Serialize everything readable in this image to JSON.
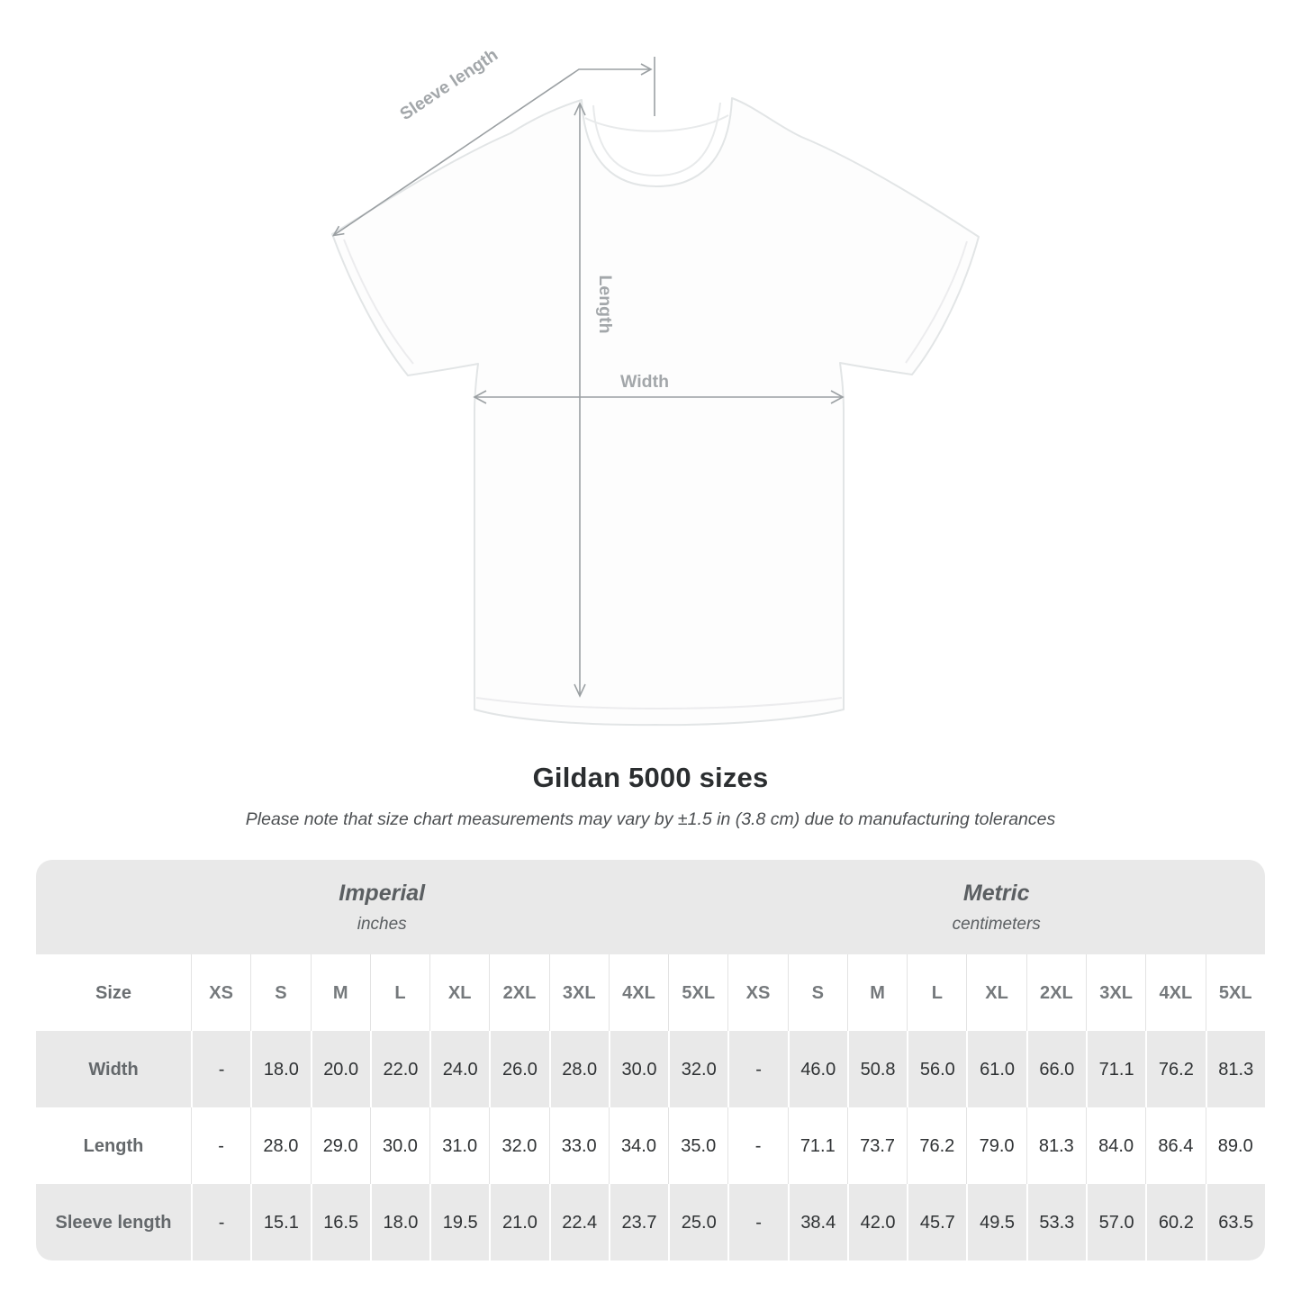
{
  "diagram": {
    "sleeve_label": "Sleeve length",
    "length_label": "Length",
    "width_label": "Width"
  },
  "title": "Gildan 5000 sizes",
  "subtitle": "Please note that size chart measurements may vary by ±1.5 in (3.8 cm) due to manufacturing tolerances",
  "chart_data": {
    "type": "table",
    "corner_header": "Size",
    "sections": [
      {
        "label": "Imperial",
        "unit": "inches"
      },
      {
        "label": "Metric",
        "unit": "centimeters"
      }
    ],
    "size_columns": [
      "XS",
      "S",
      "M",
      "L",
      "XL",
      "2XL",
      "3XL",
      "4XL",
      "5XL"
    ],
    "rows": [
      {
        "label": "Width",
        "imperial": [
          "-",
          "18.0",
          "20.0",
          "22.0",
          "24.0",
          "26.0",
          "28.0",
          "30.0",
          "32.0"
        ],
        "metric": [
          "-",
          "46.0",
          "50.8",
          "56.0",
          "61.0",
          "66.0",
          "71.1",
          "76.2",
          "81.3"
        ]
      },
      {
        "label": "Length",
        "imperial": [
          "-",
          "28.0",
          "29.0",
          "30.0",
          "31.0",
          "32.0",
          "33.0",
          "34.0",
          "35.0"
        ],
        "metric": [
          "-",
          "71.1",
          "73.7",
          "76.2",
          "79.0",
          "81.3",
          "84.0",
          "86.4",
          "89.0"
        ]
      },
      {
        "label": "Sleeve length",
        "imperial": [
          "-",
          "15.1",
          "16.5",
          "18.0",
          "19.5",
          "21.0",
          "22.4",
          "23.7",
          "25.0"
        ],
        "metric": [
          "-",
          "38.4",
          "42.0",
          "45.7",
          "49.5",
          "53.3",
          "57.0",
          "60.2",
          "63.5"
        ]
      }
    ]
  },
  "colors": {
    "band_gray": "#e9e9e9",
    "row_white": "#ffffff",
    "value_text": "#2f3234",
    "header_text": "#64686b",
    "title_text": "#2b2e30",
    "subtitle_text": "#4c4f52",
    "arrow_gray": "#9ba0a3",
    "diagram_label_gray": "#a3a7aa",
    "shirt_outline": "#e2e5e6"
  }
}
